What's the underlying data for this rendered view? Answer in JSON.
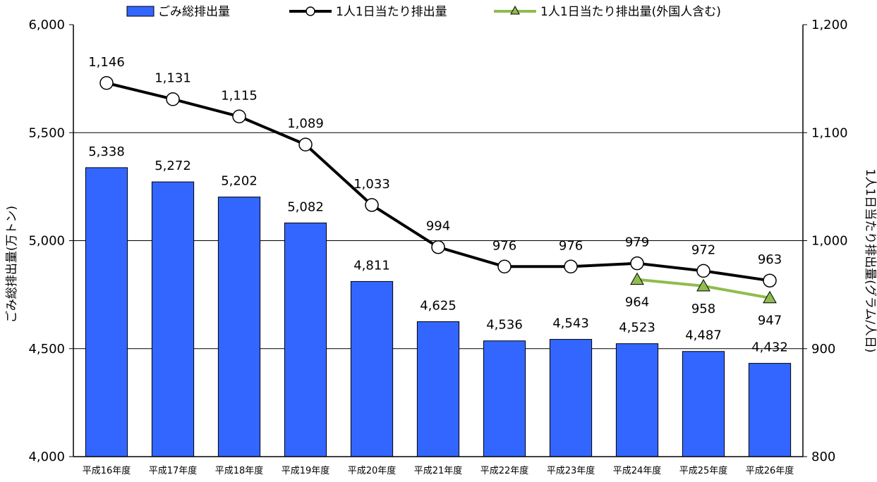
{
  "chart_data": {
    "type": "bar",
    "categories": [
      "平成16年度",
      "平成17年度",
      "平成18年度",
      "平成19年度",
      "平成20年度",
      "平成21年度",
      "平成22年度",
      "平成23年度",
      "平成24年度",
      "平成25年度",
      "平成26年度"
    ],
    "series": [
      {
        "name": "ごみ総排出量",
        "type": "bar",
        "axis": "left",
        "color": "#3366ff",
        "values": [
          5338,
          5272,
          5202,
          5082,
          4811,
          4625,
          4536,
          4543,
          4523,
          4487,
          4432
        ],
        "labels": [
          "5,338",
          "5,272",
          "5,202",
          "5,082",
          "4,811",
          "4,625",
          "4,536",
          "4,543",
          "4,523",
          "4,487",
          "4,432"
        ]
      },
      {
        "name": "1人1日当たり排出量",
        "type": "line",
        "axis": "right",
        "color": "#000000",
        "marker": "circle",
        "values": [
          1146,
          1131,
          1115,
          1089,
          1033,
          994,
          976,
          976,
          979,
          972,
          963
        ],
        "labels": [
          "1,146",
          "1,131",
          "1,115",
          "1,089",
          "1,033",
          "994",
          "976",
          "976",
          "979",
          "972",
          "963"
        ]
      },
      {
        "name": "1人1日当たり排出量(外国人含む)",
        "type": "line",
        "axis": "right",
        "color": "#8fbc4f",
        "marker": "triangle",
        "values": [
          null,
          null,
          null,
          null,
          null,
          null,
          null,
          null,
          964,
          958,
          947
        ],
        "labels": [
          "",
          "",
          "",
          "",
          "",
          "",
          "",
          "",
          "964",
          "958",
          "947"
        ]
      }
    ],
    "ylabel": "ごみ総排出量(万トン)",
    "y2label": "1人1日当たり排出量(グラム/人日)",
    "ylim": [
      4000,
      6000
    ],
    "y2lim": [
      800,
      1200
    ],
    "yticks": [
      "4,000",
      "4,500",
      "5,000",
      "5,500",
      "6,000"
    ],
    "y2ticks": [
      "800",
      "900",
      "1,000",
      "1,100",
      "1,200"
    ],
    "grid": true,
    "legend": "top"
  }
}
